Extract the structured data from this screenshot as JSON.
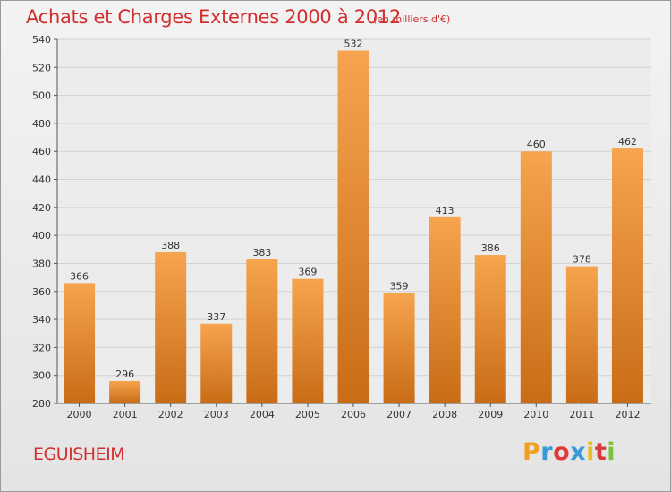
{
  "header": {
    "title": "Achats et Charges Externes 2000 à 2012",
    "subtitle": "(en milliers d'€)"
  },
  "footer": {
    "commune": "EGUISHEIM",
    "brand_letters": [
      "P",
      "r",
      "o",
      "x",
      "i",
      "t",
      "i"
    ],
    "brand_colors": [
      "#f0a020",
      "#3a9ad9",
      "#e03a3a",
      "#3a9ad9",
      "#e8c020",
      "#d83a3a",
      "#7cc23a"
    ]
  },
  "chart_data": {
    "type": "bar",
    "categories": [
      "2000",
      "2001",
      "2002",
      "2003",
      "2004",
      "2005",
      "2006",
      "2007",
      "2008",
      "2009",
      "2010",
      "2011",
      "2012"
    ],
    "values": [
      366,
      296,
      388,
      337,
      383,
      369,
      532,
      359,
      413,
      386,
      460,
      378,
      462
    ],
    "title": "Achats et Charges Externes 2000 à 2012",
    "subtitle": "(en milliers d'€)",
    "xlabel": "",
    "ylabel": "",
    "ylim": [
      280,
      540
    ],
    "yticks": [
      280,
      300,
      320,
      340,
      360,
      380,
      400,
      420,
      440,
      460,
      480,
      500,
      520,
      540
    ],
    "grid": true,
    "colors": {
      "bar_top": "#f6a44e",
      "bar_bottom": "#c96c16",
      "grid": "#d2d2d2",
      "axis": "#555555"
    }
  }
}
